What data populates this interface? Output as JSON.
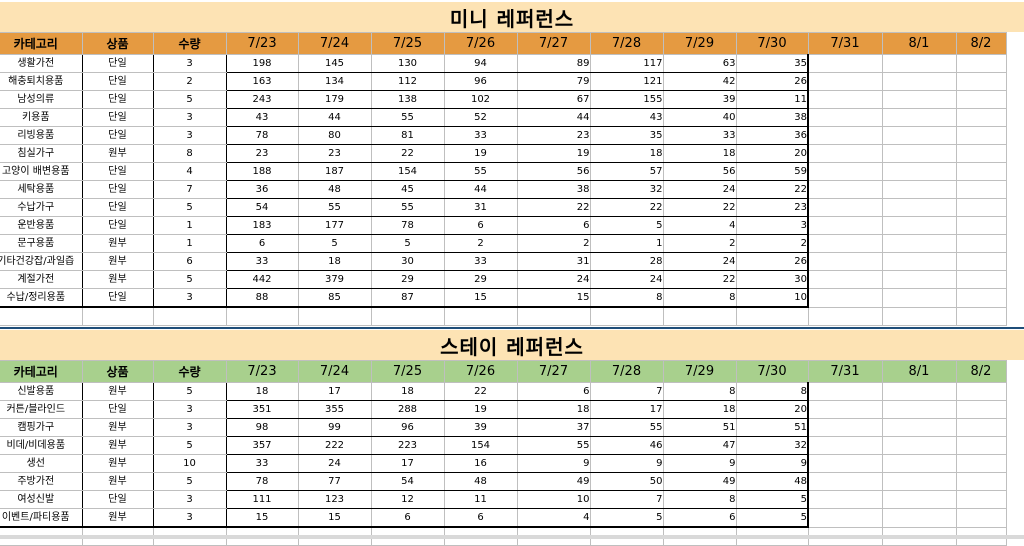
{
  "mini": {
    "title": "미니 레퍼런스",
    "headers": [
      "카테고리",
      "상품",
      "수량"
    ],
    "dates": [
      "7/23",
      "7/24",
      "7/25",
      "7/26",
      "7/27",
      "7/28",
      "7/29",
      "7/30",
      "7/31",
      "8/1",
      "8/2"
    ],
    "rows": [
      {
        "category": "생활가전",
        "product": "단일",
        "qty": "3",
        "values": [
          "198",
          "145",
          "130",
          "94",
          "89",
          "117",
          "63",
          "35",
          "",
          "",
          ""
        ]
      },
      {
        "category": "해충퇴치용품",
        "product": "단일",
        "qty": "2",
        "values": [
          "163",
          "134",
          "112",
          "96",
          "79",
          "121",
          "42",
          "26",
          "",
          "",
          ""
        ]
      },
      {
        "category": "남성의류",
        "product": "단일",
        "qty": "5",
        "values": [
          "243",
          "179",
          "138",
          "102",
          "67",
          "155",
          "39",
          "11",
          "",
          "",
          ""
        ]
      },
      {
        "category": "키용품",
        "product": "단일",
        "qty": "3",
        "values": [
          "43",
          "44",
          "55",
          "52",
          "44",
          "43",
          "40",
          "38",
          "",
          "",
          ""
        ]
      },
      {
        "category": "리빙용품",
        "product": "단일",
        "qty": "3",
        "values": [
          "78",
          "80",
          "81",
          "33",
          "23",
          "35",
          "33",
          "36",
          "",
          "",
          ""
        ]
      },
      {
        "category": "침실가구",
        "product": "원부",
        "qty": "8",
        "values": [
          "23",
          "23",
          "22",
          "19",
          "19",
          "18",
          "18",
          "20",
          "",
          "",
          ""
        ]
      },
      {
        "category": "고양이 배변용품",
        "product": "단일",
        "qty": "4",
        "values": [
          "188",
          "187",
          "154",
          "55",
          "56",
          "57",
          "56",
          "59",
          "",
          "",
          ""
        ]
      },
      {
        "category": "세탁용품",
        "product": "단일",
        "qty": "7",
        "values": [
          "36",
          "48",
          "45",
          "44",
          "38",
          "32",
          "24",
          "22",
          "",
          "",
          ""
        ]
      },
      {
        "category": "수납가구",
        "product": "단일",
        "qty": "5",
        "values": [
          "54",
          "55",
          "55",
          "31",
          "22",
          "22",
          "22",
          "23",
          "",
          "",
          ""
        ]
      },
      {
        "category": "운반용품",
        "product": "단일",
        "qty": "1",
        "values": [
          "183",
          "177",
          "78",
          "6",
          "6",
          "5",
          "4",
          "3",
          "",
          "",
          ""
        ]
      },
      {
        "category": "문구용품",
        "product": "원부",
        "qty": "1",
        "values": [
          "6",
          "5",
          "5",
          "2",
          "2",
          "1",
          "2",
          "2",
          "",
          "",
          ""
        ]
      },
      {
        "category": "기타건강잡/과일즙",
        "product": "원부",
        "qty": "6",
        "values": [
          "33",
          "18",
          "30",
          "33",
          "31",
          "28",
          "24",
          "26",
          "",
          "",
          ""
        ]
      },
      {
        "category": "계절가전",
        "product": "원부",
        "qty": "5",
        "values": [
          "442",
          "379",
          "29",
          "29",
          "24",
          "24",
          "22",
          "30",
          "",
          "",
          ""
        ]
      },
      {
        "category": "수납/정리용품",
        "product": "단일",
        "qty": "3",
        "values": [
          "88",
          "85",
          "87",
          "15",
          "15",
          "8",
          "8",
          "10",
          "",
          "",
          ""
        ]
      }
    ]
  },
  "stay": {
    "title": "스테이 레퍼런스",
    "headers": [
      "카테고리",
      "상품",
      "수량"
    ],
    "dates": [
      "7/23",
      "7/24",
      "7/25",
      "7/26",
      "7/27",
      "7/28",
      "7/29",
      "7/30",
      "7/31",
      "8/1",
      "8/2"
    ],
    "rows": [
      {
        "category": "신발용품",
        "product": "원부",
        "qty": "5",
        "values": [
          "18",
          "17",
          "18",
          "22",
          "6",
          "7",
          "8",
          "8",
          "",
          "",
          ""
        ]
      },
      {
        "category": "커튼/블라인드",
        "product": "단일",
        "qty": "3",
        "values": [
          "351",
          "355",
          "288",
          "19",
          "18",
          "17",
          "18",
          "20",
          "",
          "",
          ""
        ]
      },
      {
        "category": "캠핑가구",
        "product": "원부",
        "qty": "3",
        "values": [
          "98",
          "99",
          "96",
          "39",
          "37",
          "55",
          "51",
          "51",
          "",
          "",
          ""
        ]
      },
      {
        "category": "비데/비데용품",
        "product": "원부",
        "qty": "5",
        "values": [
          "357",
          "222",
          "223",
          "154",
          "55",
          "46",
          "47",
          "32",
          "",
          "",
          ""
        ]
      },
      {
        "category": "생선",
        "product": "원부",
        "qty": "10",
        "values": [
          "33",
          "24",
          "17",
          "16",
          "9",
          "9",
          "9",
          "9",
          "",
          "",
          ""
        ]
      },
      {
        "category": "주방가전",
        "product": "원부",
        "qty": "5",
        "values": [
          "78",
          "77",
          "54",
          "48",
          "49",
          "50",
          "49",
          "48",
          "",
          "",
          ""
        ]
      },
      {
        "category": "여성신발",
        "product": "단일",
        "qty": "3",
        "values": [
          "111",
          "123",
          "12",
          "11",
          "10",
          "7",
          "8",
          "5",
          "",
          "",
          ""
        ]
      },
      {
        "category": "이벤트/파티용품",
        "product": "원부",
        "qty": "3",
        "values": [
          "15",
          "15",
          "6",
          "6",
          "4",
          "5",
          "6",
          "5",
          "",
          "",
          ""
        ]
      }
    ]
  }
}
